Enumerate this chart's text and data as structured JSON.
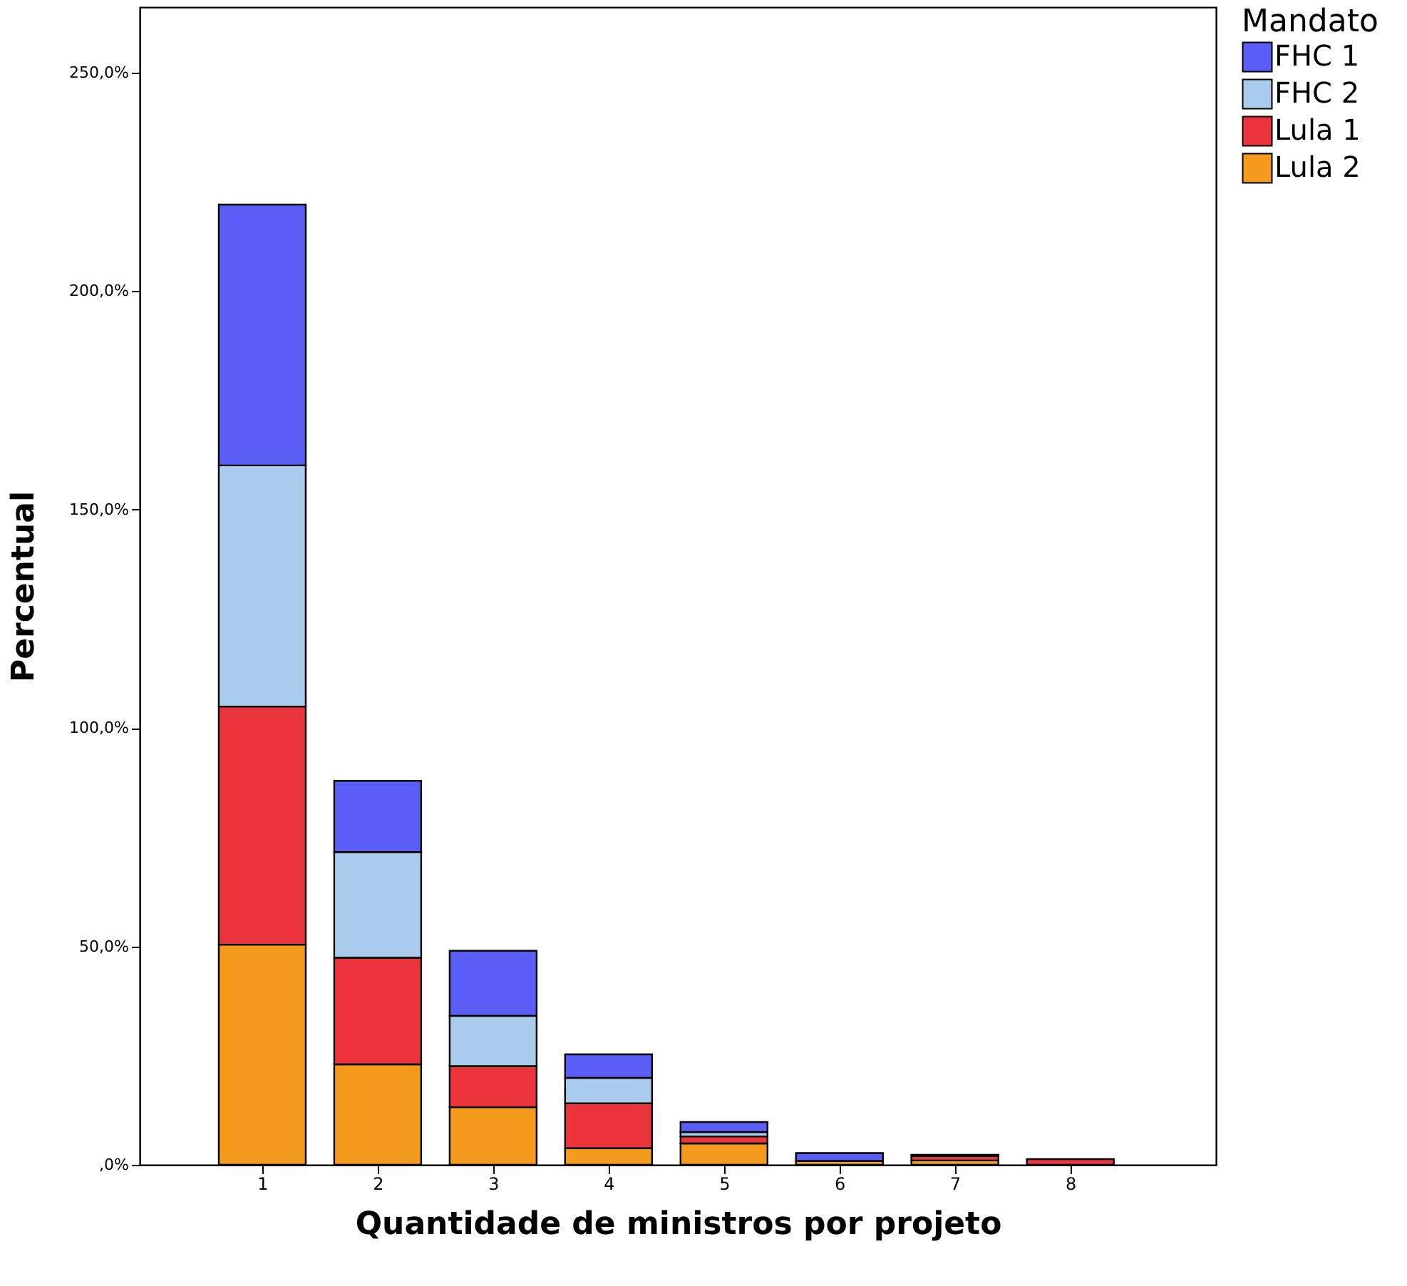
{
  "chart_data": {
    "type": "bar",
    "stacked": true,
    "xlabel": "Quantidade de ministros por projeto",
    "ylabel": "Percentual",
    "legend_title": "Mandato",
    "legend": "right",
    "categories": [
      "1",
      "2",
      "3",
      "4",
      "5",
      "6",
      "7",
      "8"
    ],
    "series": [
      {
        "name": "Lula 2",
        "color": "#f49a1d",
        "values": [
          50.4,
          23.0,
          13.2,
          3.8,
          4.9,
          0.9,
          1.0,
          null
        ]
      },
      {
        "name": "Lula 1",
        "color": "#eb343c",
        "values": [
          54.5,
          24.4,
          9.4,
          10.3,
          1.6,
          null,
          1.0,
          1.3
        ]
      },
      {
        "name": "FHC 2",
        "color": "#a9cbec",
        "values": [
          55.2,
          24.2,
          11.5,
          5.8,
          1.0,
          null,
          null,
          null
        ]
      },
      {
        "name": "FHC 1",
        "color": "#5b5ef5",
        "values": [
          59.7,
          16.3,
          14.9,
          5.4,
          2.3,
          1.8,
          0.3,
          null
        ]
      }
    ],
    "ylim": [
      0,
      265
    ],
    "yticks": [
      {
        "value": 0,
        "label": ",0%"
      },
      {
        "value": 50,
        "label": "50,0%"
      },
      {
        "value": 100,
        "label": "100,0%"
      },
      {
        "value": 150,
        "label": "150,0%"
      },
      {
        "value": 200,
        "label": "200,0%"
      },
      {
        "value": 250,
        "label": "250,0%"
      }
    ],
    "grid": false
  }
}
